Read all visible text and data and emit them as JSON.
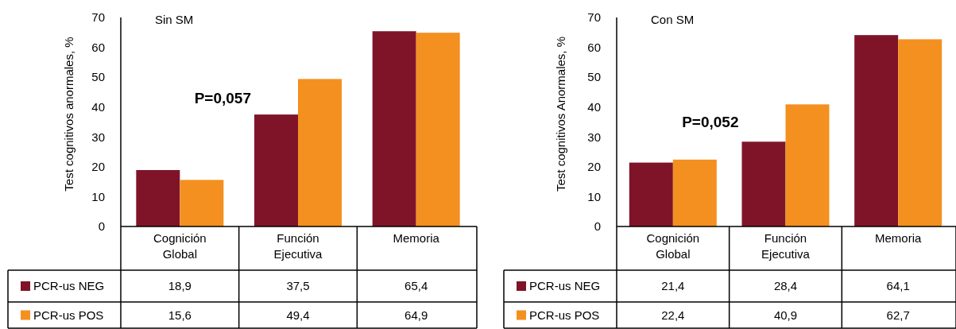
{
  "chart_data": [
    {
      "type": "bar",
      "title": "Sin SM",
      "ylabel": "Test cognitivos anormales, %",
      "categories": [
        "Cognición Global",
        "Función Ejecutiva",
        "Memoria"
      ],
      "series": [
        {
          "name": "PCR-us NEG",
          "color": "#7f1428",
          "values": [
            18.9,
            37.5,
            65.4
          ],
          "value_labels": [
            "18,9",
            "37,5",
            "65,4"
          ]
        },
        {
          "name": "PCR-us POS",
          "color": "#f39020",
          "values": [
            15.6,
            49.4,
            64.9
          ],
          "value_labels": [
            "15,6",
            "49,4",
            "64,9"
          ]
        }
      ],
      "ylim": [
        0,
        70
      ],
      "yticks": [
        0,
        10,
        20,
        30,
        40,
        50,
        60,
        70
      ],
      "legend": "bottom",
      "annotations": [
        "P=0,057"
      ]
    },
    {
      "type": "bar",
      "title": "Con SM",
      "ylabel": "Test cognitivos Anormales, %",
      "categories": [
        "Cognición Global",
        "Función Ejecutiva",
        "Memoria"
      ],
      "series": [
        {
          "name": "PCR-us NEG",
          "color": "#7f1428",
          "values": [
            21.4,
            28.4,
            64.1
          ],
          "value_labels": [
            "21,4",
            "28,4",
            "64,1"
          ]
        },
        {
          "name": "PCR-us POS",
          "color": "#f39020",
          "values": [
            22.4,
            40.9,
            62.7
          ],
          "value_labels": [
            "22,4",
            "40,9",
            "62,7"
          ]
        }
      ],
      "ylim": [
        0,
        70
      ],
      "yticks": [
        0,
        10,
        20,
        30,
        40,
        50,
        60,
        70
      ],
      "legend": "bottom",
      "annotations": [
        "P=0,052"
      ]
    }
  ]
}
